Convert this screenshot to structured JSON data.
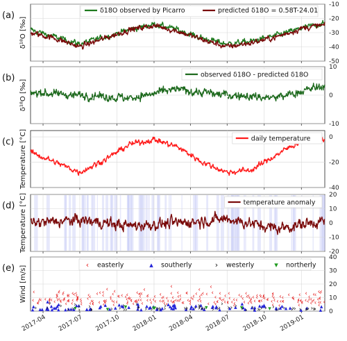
{
  "chart_data": [
    {
      "panel": "(a)",
      "type": "line",
      "ylabel": "δ¹⁸O [‰]",
      "ylim": [
        -50,
        -10
      ],
      "yticks": [
        -10,
        -20,
        -30,
        -40,
        -50
      ],
      "grid": true,
      "legend_position": "top",
      "series": [
        {
          "name": "δ18O observed by Picarro",
          "color": "#1e7a1e",
          "x": [
            "2017-03-01",
            "2017-05-01",
            "2017-07-01",
            "2017-09-01",
            "2017-11-01",
            "2018-01-01",
            "2018-03-01",
            "2018-05-01",
            "2018-07-01",
            "2018-09-01",
            "2018-11-01",
            "2019-01-01",
            "2019-02-15"
          ],
          "y": [
            -28,
            -33,
            -38,
            -33,
            -28,
            -24,
            -28,
            -34,
            -38,
            -36,
            -32,
            -27,
            -24
          ]
        },
        {
          "name": "predicted δ18O = 0.58T-24.01",
          "color": "#7a0a0a",
          "x": [
            "2017-03-01",
            "2017-05-01",
            "2017-07-01",
            "2017-09-01",
            "2017-11-01",
            "2018-01-01",
            "2018-03-01",
            "2018-05-01",
            "2018-07-01",
            "2018-09-01",
            "2018-11-01",
            "2019-01-01",
            "2019-02-15"
          ],
          "y": [
            -30,
            -34,
            -40,
            -34,
            -28,
            -25,
            -29,
            -35,
            -40,
            -37,
            -33,
            -27,
            -25
          ]
        }
      ]
    },
    {
      "panel": "(b)",
      "type": "line",
      "ylabel": "δ¹⁸O [‰]",
      "ylim": [
        -10,
        10
      ],
      "yticks": [
        10,
        0,
        -10
      ],
      "grid": true,
      "legend_position": "top-right",
      "series": [
        {
          "name": "observed δ18O - predicted δ18O",
          "color": "#1e6a1e",
          "x": [
            "2017-03-01",
            "2017-07-01",
            "2017-11-01",
            "2018-03-01",
            "2018-07-01",
            "2018-11-01",
            "2019-02-15"
          ],
          "y": [
            1,
            0,
            -1,
            2,
            0,
            -1,
            3
          ]
        }
      ]
    },
    {
      "panel": "(c)",
      "type": "line",
      "ylabel": "Temperature [°C]",
      "ylim": [
        -40,
        5
      ],
      "yticks": [
        0,
        -20,
        -40
      ],
      "grid": true,
      "legend_position": "top-right",
      "series": [
        {
          "name": "daily temperature",
          "color": "#ff1a1a",
          "x": [
            "2017-03-01",
            "2017-05-01",
            "2017-07-01",
            "2017-09-01",
            "2017-11-01",
            "2018-01-01",
            "2018-03-01",
            "2018-05-01",
            "2018-07-01",
            "2018-09-01",
            "2018-11-01",
            "2019-01-01",
            "2019-02-15"
          ],
          "y": [
            -12,
            -20,
            -28,
            -18,
            -6,
            -2,
            -8,
            -20,
            -28,
            -26,
            -14,
            -3,
            -2
          ]
        }
      ]
    },
    {
      "panel": "(d)",
      "type": "line",
      "ylabel": "Temperature [°C]",
      "ylim": [
        -20,
        20
      ],
      "yticks": [
        20,
        10,
        0,
        -10,
        -20
      ],
      "grid": true,
      "legend_position": "top-right",
      "series": [
        {
          "name": "temperature anomaly",
          "color": "#7a0a0a",
          "x": [
            "2017-03-01",
            "2017-07-01",
            "2017-11-01",
            "2018-03-01",
            "2018-07-01",
            "2018-11-01",
            "2019-02-15"
          ],
          "y": [
            0,
            2,
            -2,
            0,
            3,
            -4,
            1
          ]
        }
      ]
    },
    {
      "panel": "(e)",
      "type": "scatter",
      "ylabel": "Wind [m/s]",
      "ylim": [
        0,
        40
      ],
      "yticks": [
        40,
        30,
        20,
        10,
        0
      ],
      "grid": true,
      "legend_position": "top",
      "series": [
        {
          "name": "easterly",
          "color": "#e61e1e",
          "marker": "<"
        },
        {
          "name": "southerly",
          "color": "#2424d8",
          "marker": "^"
        },
        {
          "name": "westerly",
          "color": "#111111",
          "marker": ">"
        },
        {
          "name": "northerly",
          "color": "#1e9a1e",
          "marker": "v"
        }
      ]
    }
  ],
  "x_axis": {
    "tick_labels": [
      "2017-04",
      "2017-07",
      "2017-10",
      "2018-01",
      "2018-04",
      "2018-07",
      "2018-10",
      "2019-01"
    ]
  }
}
